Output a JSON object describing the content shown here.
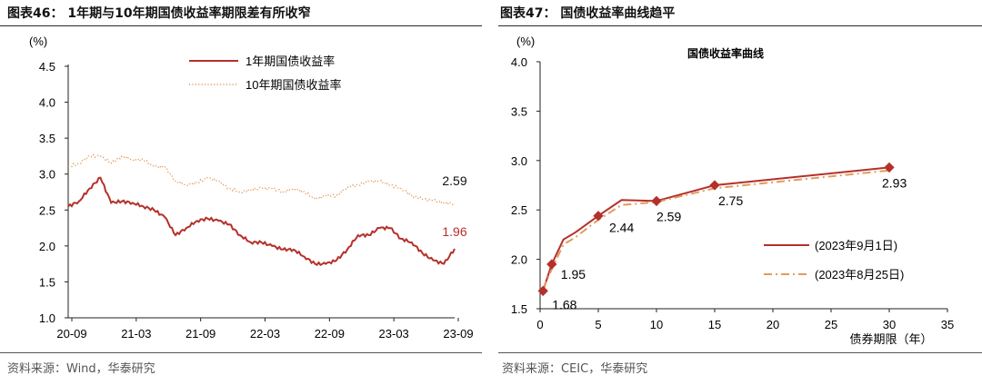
{
  "left": {
    "title": "图表46： 1年期与10年期国债收益率期限差有所收窄",
    "source": "资料来源：Wind，华泰研究",
    "chart_data": {
      "type": "line",
      "unit": "(%)",
      "ylim": [
        1.0,
        4.5
      ],
      "yticks": [
        "1.0",
        "1.5",
        "2.0",
        "2.5",
        "3.0",
        "3.5",
        "4.0",
        "4.5"
      ],
      "x_labels": [
        "20-09",
        "21-03",
        "21-09",
        "22-03",
        "22-09",
        "23-03",
        "23-09"
      ],
      "x_range": [
        "2020-09",
        "2023-09"
      ],
      "legend_position": "top-center",
      "series": [
        {
          "name": "1年期国债收益率",
          "color": "#b5302a",
          "style": "solid",
          "end_label": "1.96",
          "points": [
            [
              "2020-09",
              2.55
            ],
            [
              "2020-10",
              2.62
            ],
            [
              "2020-11",
              2.8
            ],
            [
              "2020-12",
              2.95
            ],
            [
              "2021-01",
              2.6
            ],
            [
              "2021-02",
              2.62
            ],
            [
              "2021-03",
              2.6
            ],
            [
              "2021-04",
              2.55
            ],
            [
              "2021-05",
              2.5
            ],
            [
              "2021-06",
              2.4
            ],
            [
              "2021-07",
              2.15
            ],
            [
              "2021-08",
              2.25
            ],
            [
              "2021-09",
              2.35
            ],
            [
              "2021-10",
              2.38
            ],
            [
              "2021-11",
              2.35
            ],
            [
              "2021-12",
              2.3
            ],
            [
              "2022-01",
              2.15
            ],
            [
              "2022-02",
              2.05
            ],
            [
              "2022-03",
              2.05
            ],
            [
              "2022-04",
              2.0
            ],
            [
              "2022-05",
              1.95
            ],
            [
              "2022-06",
              1.95
            ],
            [
              "2022-07",
              1.85
            ],
            [
              "2022-08",
              1.75
            ],
            [
              "2022-09",
              1.75
            ],
            [
              "2022-10",
              1.8
            ],
            [
              "2022-11",
              1.95
            ],
            [
              "2022-12",
              2.15
            ],
            [
              "2023-01",
              2.15
            ],
            [
              "2023-02",
              2.25
            ],
            [
              "2023-03",
              2.25
            ],
            [
              "2023-04",
              2.1
            ],
            [
              "2023-05",
              2.05
            ],
            [
              "2023-06",
              1.9
            ],
            [
              "2023-07",
              1.8
            ],
            [
              "2023-08",
              1.75
            ],
            [
              "2023-09",
              1.96
            ]
          ]
        },
        {
          "name": "10年期国债收益率",
          "color": "#e39a5d",
          "style": "dotted",
          "end_label": "2.59",
          "points": [
            [
              "2020-09",
              3.1
            ],
            [
              "2020-10",
              3.15
            ],
            [
              "2020-11",
              3.25
            ],
            [
              "2020-12",
              3.25
            ],
            [
              "2021-01",
              3.15
            ],
            [
              "2021-02",
              3.25
            ],
            [
              "2021-03",
              3.2
            ],
            [
              "2021-04",
              3.2
            ],
            [
              "2021-05",
              3.1
            ],
            [
              "2021-06",
              3.1
            ],
            [
              "2021-07",
              2.9
            ],
            [
              "2021-08",
              2.85
            ],
            [
              "2021-09",
              2.88
            ],
            [
              "2021-10",
              2.95
            ],
            [
              "2021-11",
              2.9
            ],
            [
              "2021-12",
              2.8
            ],
            [
              "2022-01",
              2.75
            ],
            [
              "2022-02",
              2.78
            ],
            [
              "2022-03",
              2.8
            ],
            [
              "2022-04",
              2.8
            ],
            [
              "2022-05",
              2.75
            ],
            [
              "2022-06",
              2.8
            ],
            [
              "2022-07",
              2.75
            ],
            [
              "2022-08",
              2.65
            ],
            [
              "2022-09",
              2.7
            ],
            [
              "2022-10",
              2.7
            ],
            [
              "2022-11",
              2.82
            ],
            [
              "2022-12",
              2.85
            ],
            [
              "2023-01",
              2.9
            ],
            [
              "2023-02",
              2.9
            ],
            [
              "2023-03",
              2.85
            ],
            [
              "2023-04",
              2.8
            ],
            [
              "2023-05",
              2.7
            ],
            [
              "2023-06",
              2.65
            ],
            [
              "2023-07",
              2.63
            ],
            [
              "2023-08",
              2.6
            ],
            [
              "2023-09",
              2.59
            ]
          ]
        }
      ]
    }
  },
  "right": {
    "title": "图表47： 国债收益率曲线趋平",
    "source": "资料来源：CEIC，华泰研究",
    "chart_data": {
      "type": "line",
      "unit": "(%)",
      "title": "国债收益率曲线",
      "xlabel": "债券期限（年）",
      "xlim": [
        0,
        35
      ],
      "ylim": [
        1.5,
        4.0
      ],
      "xticks": [
        "0",
        "5",
        "10",
        "15",
        "20",
        "25",
        "30",
        "35"
      ],
      "yticks": [
        "1.5",
        "2.0",
        "2.5",
        "3.0",
        "3.5",
        "4.0"
      ],
      "legend_position": "lower-right",
      "series": [
        {
          "name": "(2023年9月1日)",
          "color": "#b5302a",
          "style": "solid",
          "points": [
            [
              0.25,
              1.68
            ],
            [
              1,
              1.95
            ],
            [
              2,
              2.2
            ],
            [
              3,
              2.27
            ],
            [
              5,
              2.44
            ],
            [
              7,
              2.6
            ],
            [
              10,
              2.59
            ],
            [
              15,
              2.75
            ],
            [
              30,
              2.93
            ]
          ]
        },
        {
          "name": "(2023年8月25日)",
          "color": "#e39a5d",
          "style": "dashdot",
          "points": [
            [
              0.25,
              1.7
            ],
            [
              1,
              1.9
            ],
            [
              2,
              2.15
            ],
            [
              3,
              2.22
            ],
            [
              5,
              2.4
            ],
            [
              7,
              2.55
            ],
            [
              10,
              2.58
            ],
            [
              15,
              2.72
            ],
            [
              30,
              2.9
            ]
          ]
        }
      ],
      "markers": [
        {
          "x": 0.25,
          "y": 1.68,
          "label": "1.68"
        },
        {
          "x": 1,
          "y": 1.95,
          "label": "1.95"
        },
        {
          "x": 5,
          "y": 2.44,
          "label": "2.44"
        },
        {
          "x": 10,
          "y": 2.59,
          "label": "2.59"
        },
        {
          "x": 15,
          "y": 2.75,
          "label": "2.75"
        },
        {
          "x": 30,
          "y": 2.93,
          "label": "2.93"
        }
      ]
    }
  }
}
